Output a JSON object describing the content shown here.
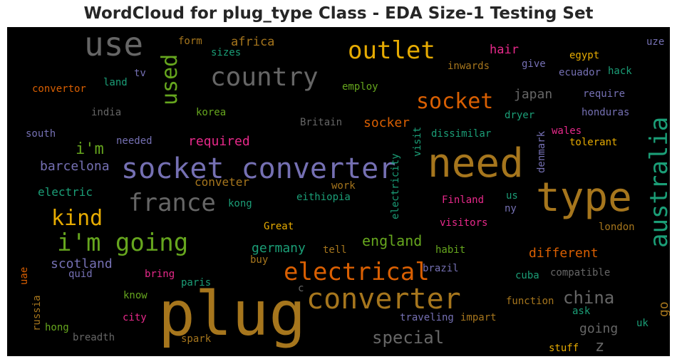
{
  "chart_data": {
    "type": "wordcloud",
    "title": "WordCloud for plug_type Class - EDA Size-1 Testing Set",
    "background": "#000000",
    "words": [
      {
        "text": "plug",
        "color": "#a6761d"
      },
      {
        "text": "need",
        "color": "#a6761d"
      },
      {
        "text": "type",
        "color": "#a6761d"
      },
      {
        "text": "socket converter",
        "color": "#7570b3"
      },
      {
        "text": "converter",
        "color": "#a6761d"
      },
      {
        "text": "use",
        "color": "#666666"
      },
      {
        "text": "country",
        "color": "#666666"
      },
      {
        "text": "outlet",
        "color": "#e6ab02"
      },
      {
        "text": "electrical",
        "color": "#d95f02"
      },
      {
        "text": "i'm going",
        "color": "#66a61e"
      },
      {
        "text": "france",
        "color": "#666666"
      },
      {
        "text": "australia",
        "color": "#1b9e77"
      },
      {
        "text": "used",
        "color": "#66a61e"
      },
      {
        "text": "socket",
        "color": "#d95f02"
      },
      {
        "text": "kind",
        "color": "#e6ab02"
      },
      {
        "text": "china",
        "color": "#666666"
      },
      {
        "text": "special",
        "color": "#666666"
      },
      {
        "text": "england",
        "color": "#66a61e"
      },
      {
        "text": "different",
        "color": "#d95f02"
      },
      {
        "text": "germany",
        "color": "#1b9e77"
      },
      {
        "text": "scotland",
        "color": "#7570b3"
      },
      {
        "text": "going",
        "color": "#666666"
      },
      {
        "text": "i'm",
        "color": "#66a61e"
      },
      {
        "text": "barcelona",
        "color": "#7570b3"
      },
      {
        "text": "required",
        "color": "#e7298a"
      },
      {
        "text": "japan",
        "color": "#666666"
      },
      {
        "text": "africa",
        "color": "#a6761d"
      },
      {
        "text": "hair",
        "color": "#e7298a"
      },
      {
        "text": "socker",
        "color": "#d95f02"
      },
      {
        "text": "conveter",
        "color": "#a6761d"
      },
      {
        "text": "electric",
        "color": "#1b9e77"
      },
      {
        "text": "go",
        "color": "#a6761d"
      },
      {
        "text": "z",
        "color": "#666666"
      },
      {
        "text": "form",
        "color": "#a6761d"
      },
      {
        "text": "sizes",
        "color": "#1b9e77"
      },
      {
        "text": "tv",
        "color": "#7570b3"
      },
      {
        "text": "land",
        "color": "#1b9e77"
      },
      {
        "text": "convertor",
        "color": "#d95f02"
      },
      {
        "text": "india",
        "color": "#666666"
      },
      {
        "text": "korea",
        "color": "#66a61e"
      },
      {
        "text": "south",
        "color": "#7570b3"
      },
      {
        "text": "needed",
        "color": "#7570b3"
      },
      {
        "text": "Britain",
        "color": "#666666"
      },
      {
        "text": "employ",
        "color": "#66a61e"
      },
      {
        "text": "inwards",
        "color": "#a6761d"
      },
      {
        "text": "give",
        "color": "#7570b3"
      },
      {
        "text": "egypt",
        "color": "#e6ab02"
      },
      {
        "text": "uze",
        "color": "#7570b3"
      },
      {
        "text": "ecuador",
        "color": "#7570b3"
      },
      {
        "text": "hack",
        "color": "#1b9e77"
      },
      {
        "text": "require",
        "color": "#7570b3"
      },
      {
        "text": "dryer",
        "color": "#1b9e77"
      },
      {
        "text": "honduras",
        "color": "#7570b3"
      },
      {
        "text": "dissimilar",
        "color": "#1b9e77"
      },
      {
        "text": "wales",
        "color": "#e7298a"
      },
      {
        "text": "tolerant",
        "color": "#e6ab02"
      },
      {
        "text": "denmark",
        "color": "#7570b3"
      },
      {
        "text": "visit",
        "color": "#1b9e77"
      },
      {
        "text": "electricity",
        "color": "#1b9e77"
      },
      {
        "text": "work",
        "color": "#a6761d"
      },
      {
        "text": "eithiopia",
        "color": "#1b9e77"
      },
      {
        "text": "kong",
        "color": "#1b9e77"
      },
      {
        "text": "Finland",
        "color": "#e7298a"
      },
      {
        "text": "us",
        "color": "#1b9e77"
      },
      {
        "text": "ny",
        "color": "#7570b3"
      },
      {
        "text": "visitors",
        "color": "#e7298a"
      },
      {
        "text": "london",
        "color": "#a6761d"
      },
      {
        "text": "Great",
        "color": "#e6ab02"
      },
      {
        "text": "tell",
        "color": "#a6761d"
      },
      {
        "text": "habit",
        "color": "#66a61e"
      },
      {
        "text": "quid",
        "color": "#7570b3"
      },
      {
        "text": "buy",
        "color": "#a6761d"
      },
      {
        "text": "brazil",
        "color": "#7570b3"
      },
      {
        "text": "cuba",
        "color": "#1b9e77"
      },
      {
        "text": "compatible",
        "color": "#666666"
      },
      {
        "text": "uae",
        "color": "#d95f02"
      },
      {
        "text": "bring",
        "color": "#e7298a"
      },
      {
        "text": "paris",
        "color": "#1b9e77"
      },
      {
        "text": "c",
        "color": "#666666"
      },
      {
        "text": "russia",
        "color": "#a6761d"
      },
      {
        "text": "know",
        "color": "#66a61e"
      },
      {
        "text": "function",
        "color": "#a6761d"
      },
      {
        "text": "city",
        "color": "#e7298a"
      },
      {
        "text": "ask",
        "color": "#1b9e77"
      },
      {
        "text": "traveling",
        "color": "#7570b3"
      },
      {
        "text": "impart",
        "color": "#a6761d"
      },
      {
        "text": "hong",
        "color": "#66a61e"
      },
      {
        "text": "uk",
        "color": "#1b9e77"
      },
      {
        "text": "breadth",
        "color": "#666666"
      },
      {
        "text": "spark",
        "color": "#a6761d"
      },
      {
        "text": "stuff",
        "color": "#e6ab02"
      }
    ]
  }
}
